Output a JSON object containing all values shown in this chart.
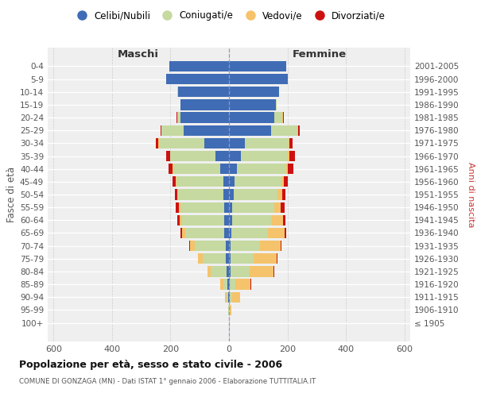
{
  "age_groups": [
    "100+",
    "95-99",
    "90-94",
    "85-89",
    "80-84",
    "75-79",
    "70-74",
    "65-69",
    "60-64",
    "55-59",
    "50-54",
    "45-49",
    "40-44",
    "35-39",
    "30-34",
    "25-29",
    "20-24",
    "15-19",
    "10-14",
    "5-9",
    "0-4"
  ],
  "birth_years": [
    "≤ 1905",
    "1906-1910",
    "1911-1915",
    "1916-1920",
    "1921-1925",
    "1926-1930",
    "1931-1935",
    "1936-1940",
    "1941-1945",
    "1946-1950",
    "1951-1955",
    "1956-1960",
    "1961-1965",
    "1966-1970",
    "1971-1975",
    "1976-1980",
    "1981-1985",
    "1986-1990",
    "1991-1995",
    "1996-2000",
    "2001-2005"
  ],
  "male_celibe": [
    1,
    1,
    3,
    5,
    8,
    10,
    12,
    15,
    15,
    16,
    18,
    20,
    30,
    45,
    85,
    155,
    165,
    165,
    175,
    215,
    205
  ],
  "male_coniugato": [
    0,
    1,
    5,
    15,
    55,
    80,
    105,
    135,
    145,
    150,
    155,
    160,
    160,
    155,
    155,
    75,
    10,
    2,
    2,
    0,
    0
  ],
  "male_vedovo": [
    0,
    1,
    5,
    10,
    10,
    15,
    15,
    10,
    8,
    5,
    3,
    2,
    2,
    2,
    2,
    2,
    2,
    0,
    0,
    0,
    0
  ],
  "male_divorziato": [
    0,
    0,
    0,
    0,
    0,
    2,
    3,
    5,
    8,
    12,
    10,
    12,
    15,
    12,
    8,
    2,
    2,
    0,
    0,
    0,
    0
  ],
  "female_celibe": [
    1,
    1,
    2,
    3,
    5,
    5,
    5,
    8,
    10,
    12,
    15,
    18,
    28,
    40,
    55,
    145,
    155,
    160,
    170,
    200,
    195
  ],
  "female_coniugato": [
    0,
    1,
    8,
    18,
    65,
    78,
    100,
    125,
    138,
    142,
    152,
    162,
    168,
    162,
    148,
    88,
    28,
    4,
    2,
    0,
    0
  ],
  "female_vedovo": [
    1,
    5,
    28,
    52,
    82,
    80,
    72,
    58,
    38,
    22,
    14,
    8,
    6,
    4,
    4,
    4,
    2,
    0,
    0,
    0,
    0
  ],
  "female_divorziata": [
    0,
    0,
    1,
    2,
    2,
    2,
    3,
    5,
    8,
    14,
    12,
    14,
    18,
    20,
    10,
    4,
    2,
    0,
    0,
    0,
    0
  ],
  "colors": {
    "celibe": "#3f6cb5",
    "coniugato": "#c5d9a0",
    "vedovo": "#f5c36b",
    "divorziato": "#cc1111"
  },
  "xlim": [
    -620,
    620
  ],
  "xticks": [
    -600,
    -400,
    -200,
    0,
    200,
    400,
    600
  ],
  "xtick_labels": [
    "600",
    "400",
    "200",
    "0",
    "200",
    "400",
    "600"
  ],
  "title": "Popolazione per età, sesso e stato civile - 2006",
  "subtitle": "COMUNE DI GONZAGA (MN) - Dati ISTAT 1° gennaio 2006 - Elaborazione TUTTITALIA.IT",
  "ylabel_left": "Fasce di età",
  "ylabel_right": "Anni di nascita",
  "label_maschi": "Maschi",
  "label_femmine": "Femmine",
  "legend_labels": [
    "Celibi/Nubili",
    "Coniugati/e",
    "Vedovi/e",
    "Divorziati/e"
  ],
  "bg_color": "#efefef",
  "bar_height": 0.82
}
